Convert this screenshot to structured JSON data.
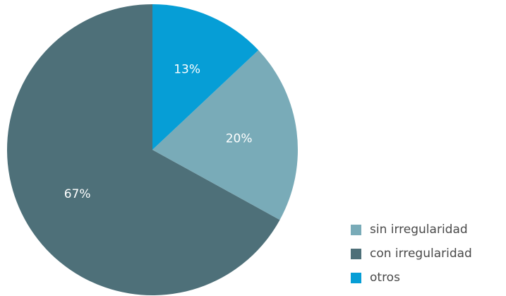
{
  "chart_data": {
    "type": "pie",
    "start": "top",
    "direction": "counterclockwise",
    "slices": [
      {
        "label": "con irregularidad",
        "value": 67,
        "display": "67%",
        "color": "#4e7079"
      },
      {
        "label": "sin irregularidad",
        "value": 20,
        "display": "20%",
        "color": "#79abb8"
      },
      {
        "label": "otros",
        "value": 13,
        "display": "13%",
        "color": "#069ed6"
      }
    ],
    "legend": {
      "position": "bottom-right",
      "entries": [
        {
          "label": "sin irregularidad",
          "color": "#79abb8"
        },
        {
          "label": "con irregularidad",
          "color": "#4e7079"
        },
        {
          "label": "otros",
          "color": "#069ed6"
        }
      ]
    }
  }
}
